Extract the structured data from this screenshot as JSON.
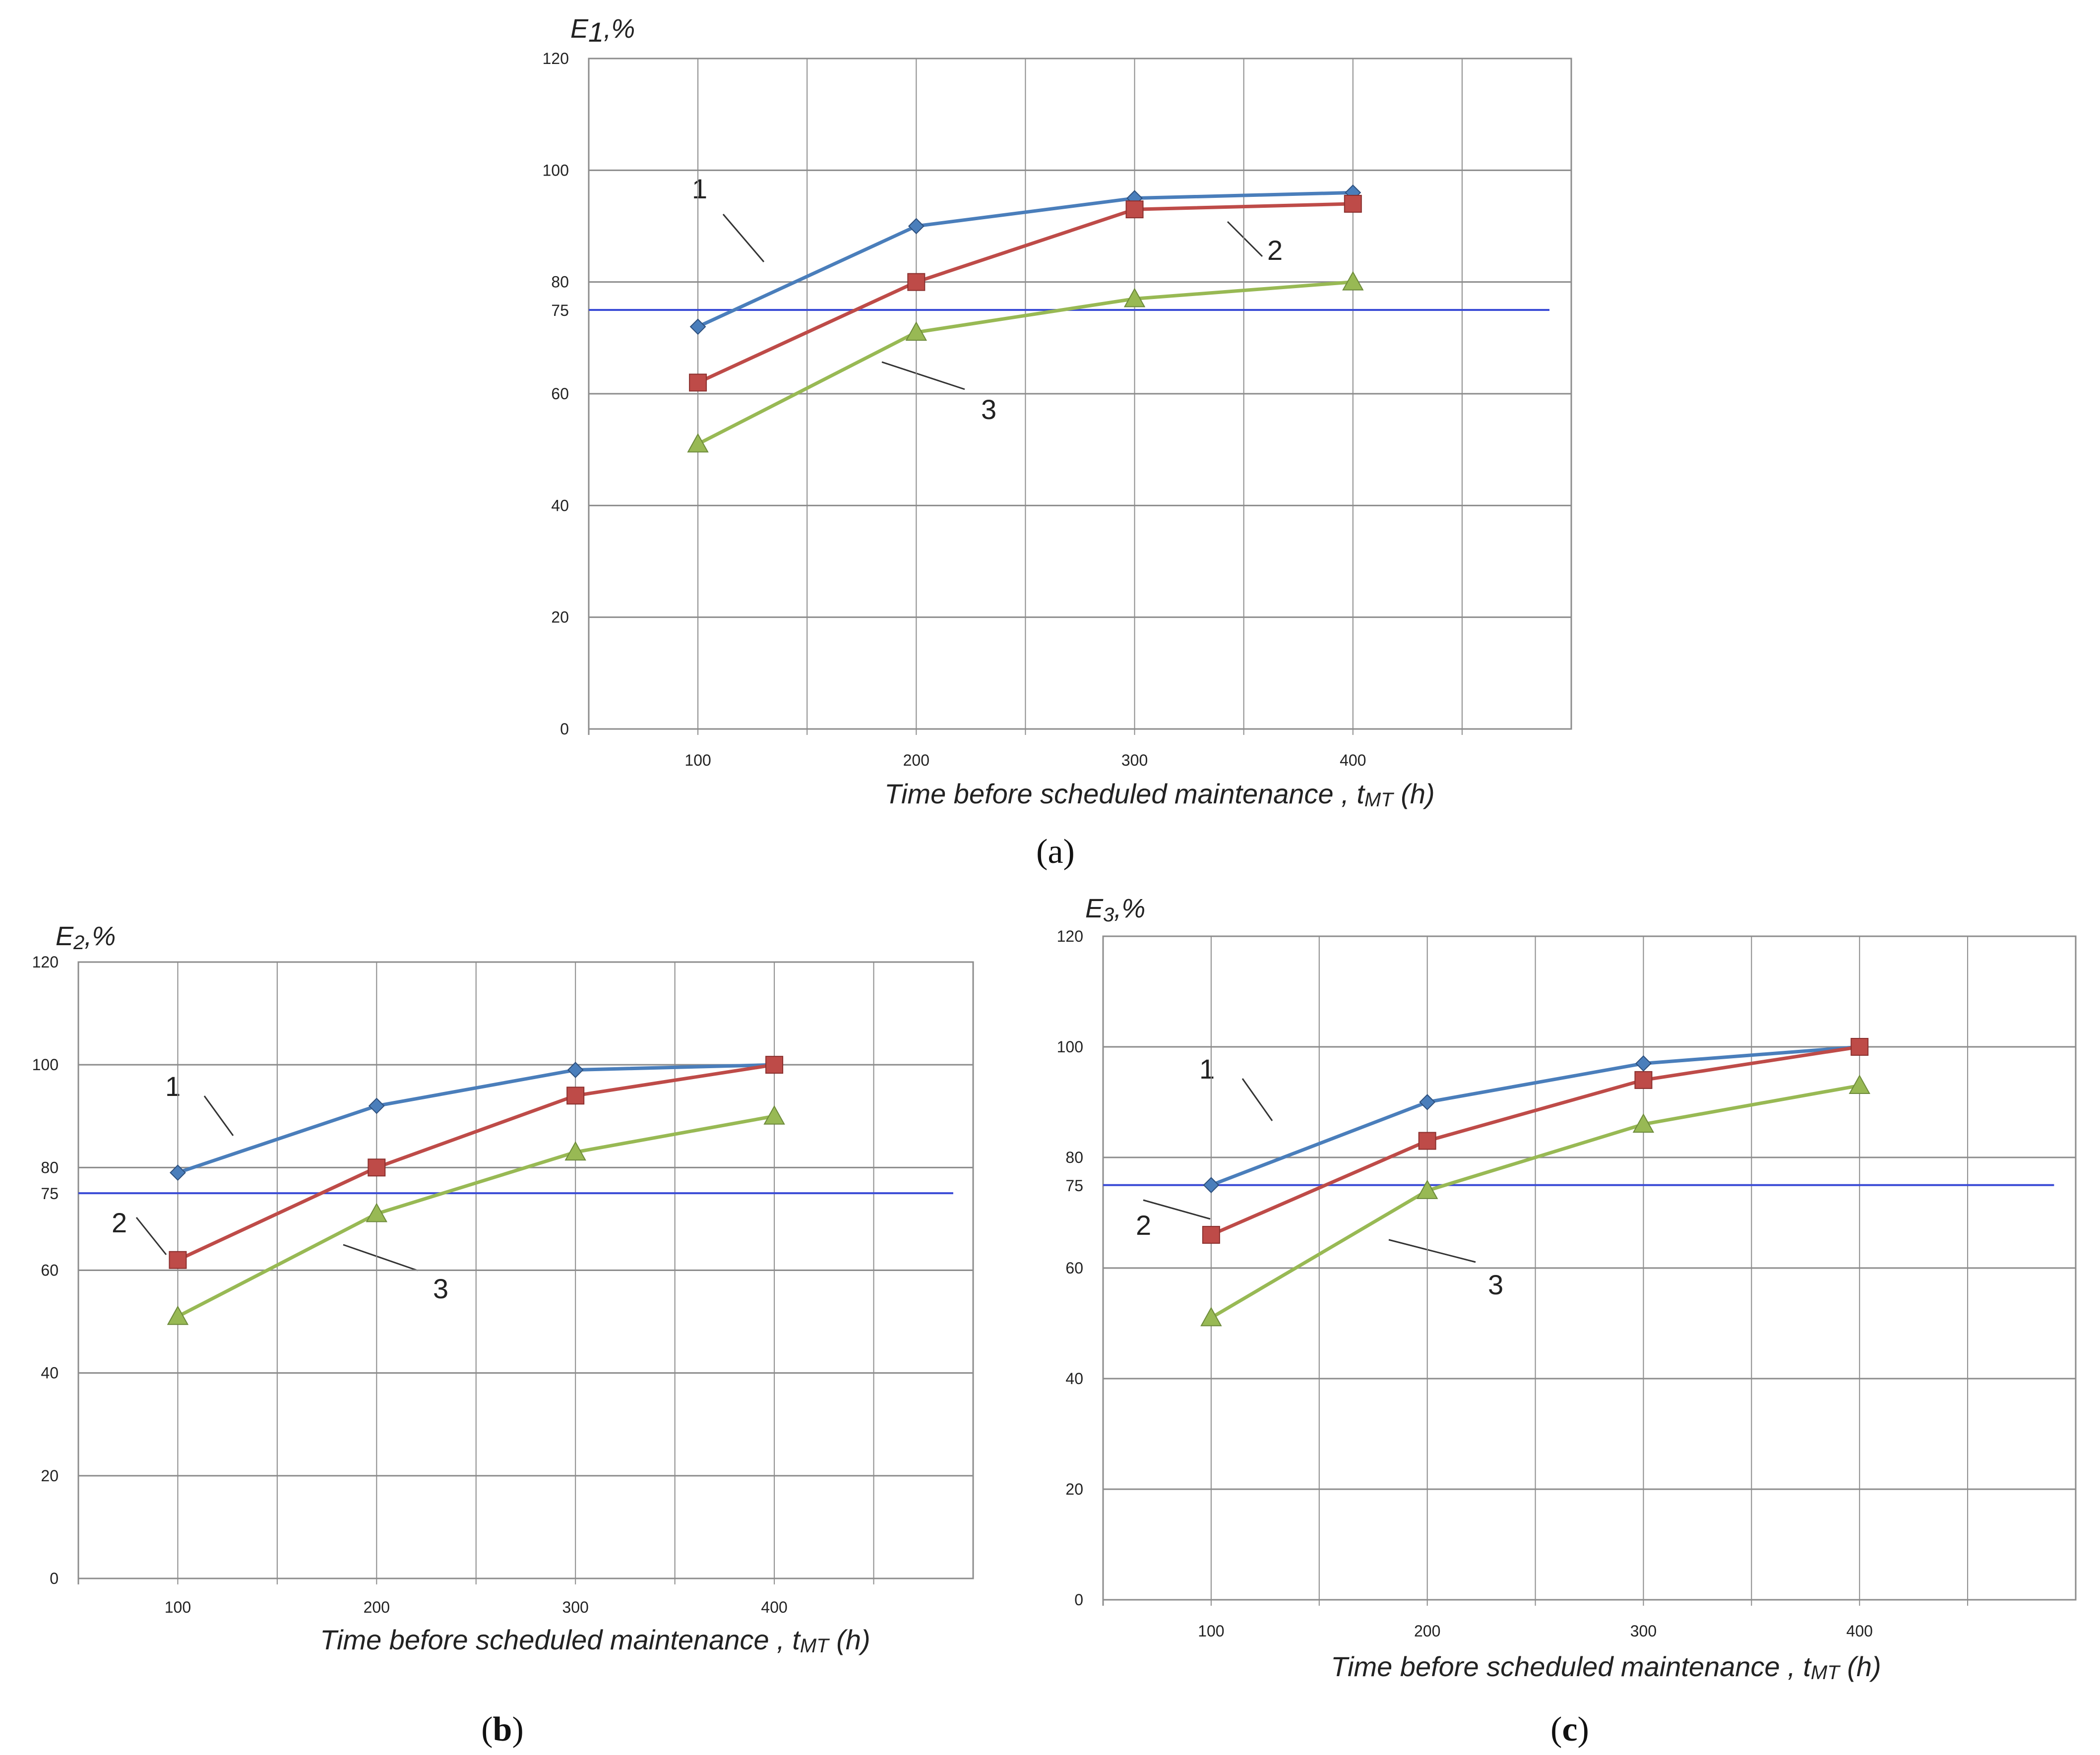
{
  "colors": {
    "series1": "#4a7ebb",
    "series2": "#be4b48",
    "series3": "#98b954",
    "threshold": "#3b4cd6",
    "grid": "#8c8c8c"
  },
  "chart_data": [
    {
      "panel": "a",
      "type": "line",
      "caption_open": "(",
      "caption_letter": "a",
      "caption_close": ")",
      "ylabel_main": "E",
      "ylabel_sub": "1",
      "ylabel_tail": ",%",
      "xlabel_main": "Time before   scheduled    maintenance ,  ",
      "xlabel_var": "t",
      "xlabel_sub": "MT",
      "xlabel_tail": " (h)",
      "categories": [
        "100",
        "200",
        "300",
        "400"
      ],
      "yticks": [
        "0",
        "20",
        "40",
        "60",
        "80",
        "100",
        "120"
      ],
      "threshold_label": "75",
      "threshold": 75,
      "ylim": [
        0,
        120
      ],
      "series": [
        {
          "name": "1",
          "marker": "diamond",
          "values": [
            72,
            90,
            95,
            96
          ]
        },
        {
          "name": "2",
          "marker": "square",
          "values": [
            62,
            80,
            93,
            94
          ]
        },
        {
          "name": "3",
          "marker": "triangle",
          "values": [
            51,
            71,
            77,
            80
          ]
        }
      ],
      "annotations": [
        "1",
        "2",
        "3"
      ]
    },
    {
      "panel": "b",
      "type": "line",
      "caption_open": "(",
      "caption_letter": "b",
      "caption_close": ")",
      "ylabel_main": "E",
      "ylabel_sub": "2",
      "ylabel_tail": ",%",
      "xlabel_main": "Time before   scheduled    maintenance ,  ",
      "xlabel_var": "t",
      "xlabel_sub": "MT",
      "xlabel_tail": " (h)",
      "categories": [
        "100",
        "200",
        "300",
        "400"
      ],
      "yticks": [
        "0",
        "20",
        "40",
        "60",
        "80",
        "100",
        "120"
      ],
      "threshold_label": "75",
      "threshold": 75,
      "ylim": [
        0,
        120
      ],
      "series": [
        {
          "name": "1",
          "marker": "diamond",
          "values": [
            79,
            92,
            99,
            100
          ]
        },
        {
          "name": "2",
          "marker": "square",
          "values": [
            62,
            80,
            94,
            100
          ]
        },
        {
          "name": "3",
          "marker": "triangle",
          "values": [
            51,
            71,
            83,
            90
          ]
        }
      ],
      "annotations": [
        "1",
        "2",
        "3"
      ]
    },
    {
      "panel": "c",
      "type": "line",
      "caption_open": "(",
      "caption_letter": "c",
      "caption_close": ")",
      "ylabel_main": "E",
      "ylabel_sub": "3",
      "ylabel_tail": ",%",
      "xlabel_main": "Time before   scheduled    maintenance ,  ",
      "xlabel_var": "t",
      "xlabel_sub": "MT",
      "xlabel_tail": " (h)",
      "categories": [
        "100",
        "200",
        "300",
        "400"
      ],
      "yticks": [
        "0",
        "20",
        "40",
        "60",
        "80",
        "100",
        "120"
      ],
      "threshold_label": "75",
      "threshold": 75,
      "ylim": [
        0,
        120
      ],
      "series": [
        {
          "name": "1",
          "marker": "diamond",
          "values": [
            75,
            90,
            97,
            100
          ]
        },
        {
          "name": "2",
          "marker": "square",
          "values": [
            66,
            83,
            94,
            100
          ]
        },
        {
          "name": "3",
          "marker": "triangle",
          "values": [
            51,
            74,
            86,
            93
          ]
        }
      ],
      "annotations": [
        "1",
        "2",
        "3"
      ]
    }
  ]
}
